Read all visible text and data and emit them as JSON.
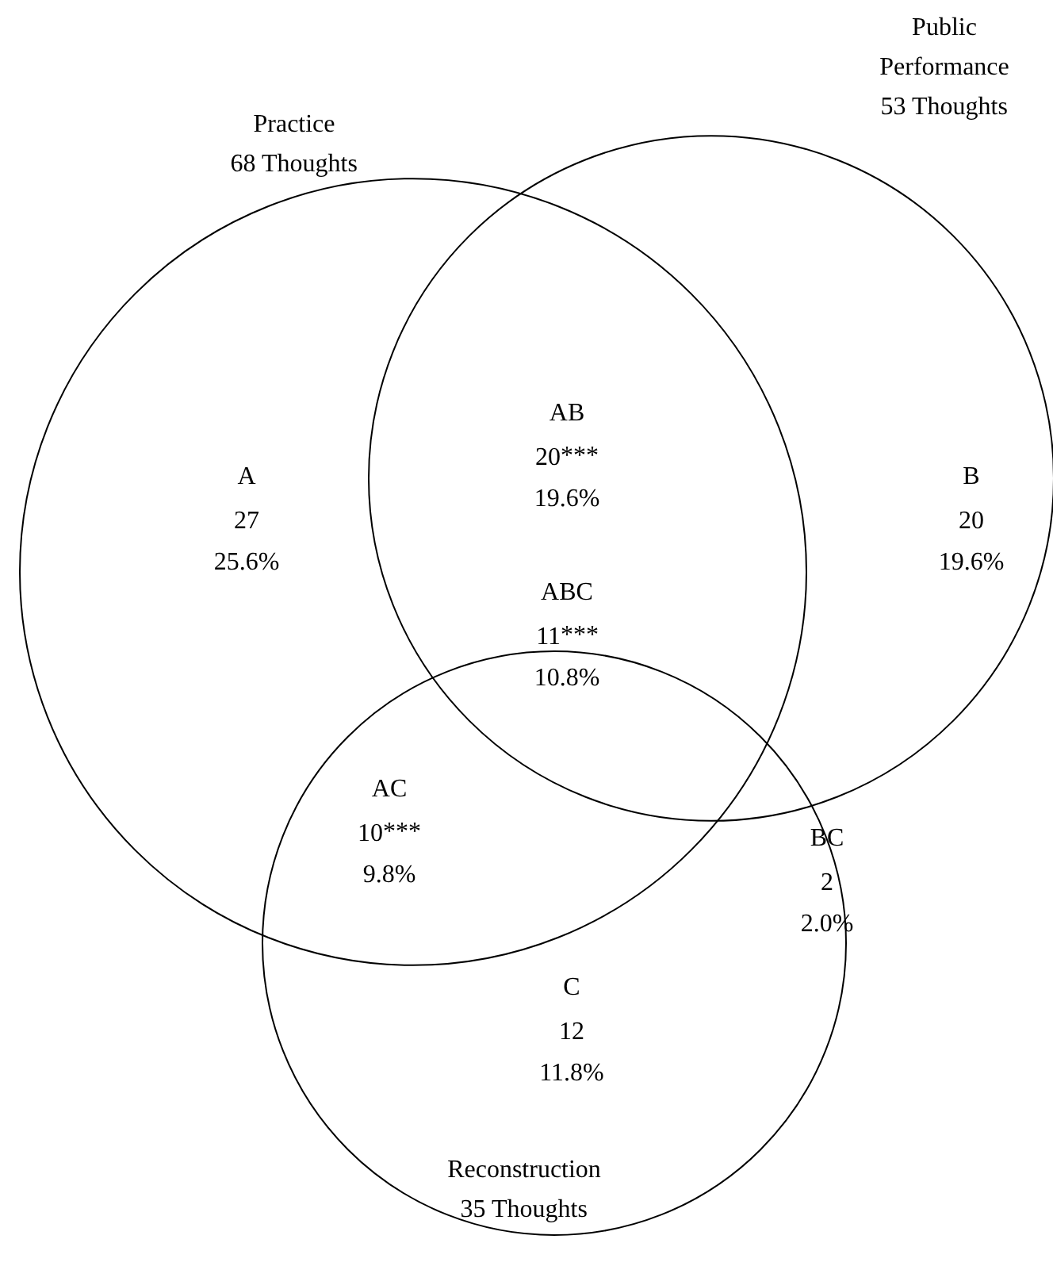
{
  "chart_data": {
    "type": "other",
    "categories": [
      "A",
      "B",
      "C",
      "AB",
      "AC",
      "BC",
      "ABC"
    ],
    "values": [
      27,
      20,
      12,
      20,
      10,
      2,
      11
    ],
    "data_labels": true,
    "annotations": [
      "Practice\n68 Thoughts",
      "Public\nPerformance\n53 Thoughts",
      "Reconstruction\n35 Thoughts",
      {
        "text": "***",
        "x": "AB"
      },
      {
        "text": "***",
        "x": "AC"
      },
      {
        "text": "***",
        "x": "ABC"
      },
      {
        "text": "25.6%",
        "x": "A"
      },
      {
        "text": "19.6%",
        "x": "B"
      },
      {
        "text": "11.8%",
        "x": "C"
      },
      {
        "text": "19.6%",
        "x": "AB"
      },
      {
        "text": "9.8%",
        "x": "AC"
      },
      {
        "text": "2.0%",
        "x": "BC"
      },
      {
        "text": "10.8%",
        "x": "ABC"
      }
    ]
  }
}
